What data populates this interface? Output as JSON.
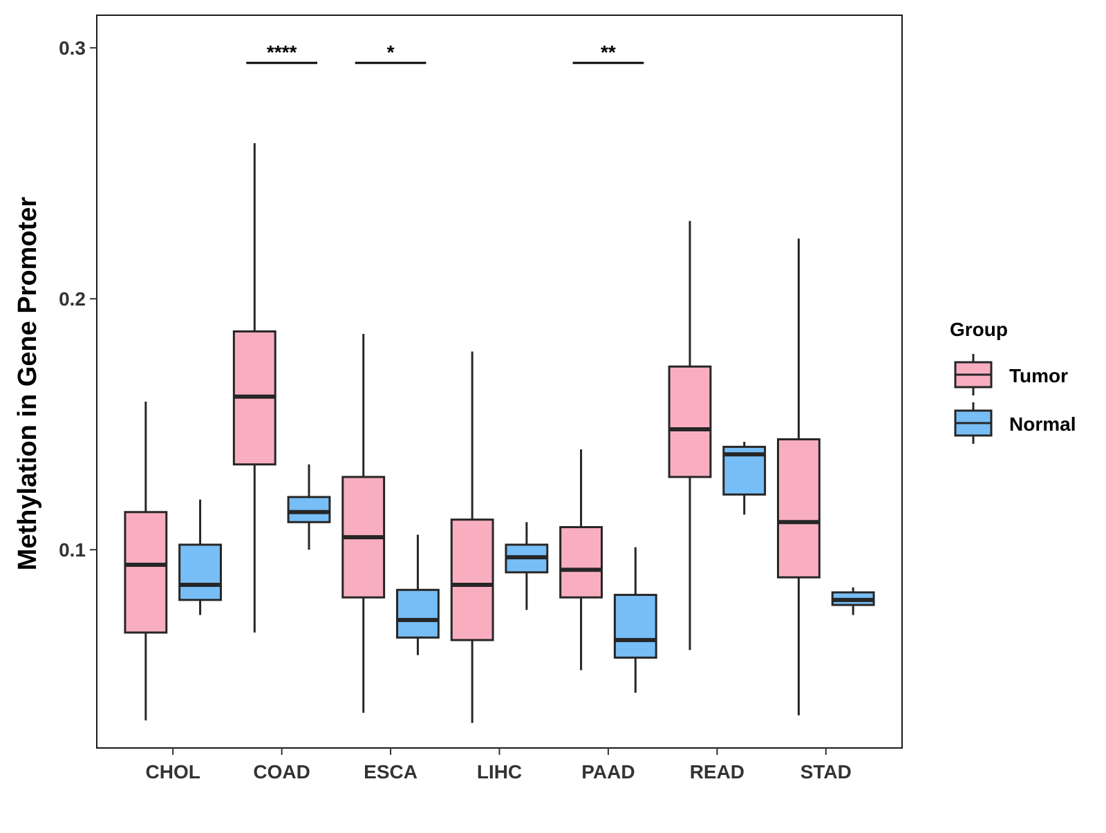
{
  "chart_data": {
    "type": "boxplot",
    "title": "",
    "xlabel": "",
    "ylabel": "Methylation in Gene Promoter",
    "ylim": [
      0.021,
      0.313
    ],
    "yticks": [
      0.1,
      0.2,
      0.3
    ],
    "ytick_labels": [
      "0.1",
      "0.2",
      "0.3"
    ],
    "categories": [
      "CHOL",
      "COAD",
      "ESCA",
      "LIHC",
      "PAAD",
      "READ",
      "STAD"
    ],
    "legend": {
      "title": "Group",
      "position": "right",
      "entries": [
        "Tumor",
        "Normal"
      ]
    },
    "colors": {
      "Tumor": "#F9AEC0",
      "Normal": "#78BEF6",
      "stroke": "#262626"
    },
    "series": [
      {
        "name": "Tumor",
        "boxes": [
          {
            "min": 0.032,
            "q1": 0.067,
            "median": 0.094,
            "q3": 0.115,
            "max": 0.159
          },
          {
            "min": 0.067,
            "q1": 0.134,
            "median": 0.161,
            "q3": 0.187,
            "max": 0.262
          },
          {
            "min": 0.035,
            "q1": 0.081,
            "median": 0.105,
            "q3": 0.129,
            "max": 0.186
          },
          {
            "min": 0.031,
            "q1": 0.064,
            "median": 0.086,
            "q3": 0.112,
            "max": 0.179
          },
          {
            "min": 0.052,
            "q1": 0.081,
            "median": 0.092,
            "q3": 0.109,
            "max": 0.14
          },
          {
            "min": 0.06,
            "q1": 0.129,
            "median": 0.148,
            "q3": 0.173,
            "max": 0.231
          },
          {
            "min": 0.034,
            "q1": 0.089,
            "median": 0.111,
            "q3": 0.144,
            "max": 0.224
          }
        ]
      },
      {
        "name": "Normal",
        "boxes": [
          {
            "min": 0.074,
            "q1": 0.08,
            "median": 0.086,
            "q3": 0.102,
            "max": 0.12
          },
          {
            "min": 0.1,
            "q1": 0.111,
            "median": 0.115,
            "q3": 0.121,
            "max": 0.134
          },
          {
            "min": 0.058,
            "q1": 0.065,
            "median": 0.072,
            "q3": 0.084,
            "max": 0.106
          },
          {
            "min": 0.076,
            "q1": 0.091,
            "median": 0.097,
            "q3": 0.102,
            "max": 0.111
          },
          {
            "min": 0.043,
            "q1": 0.057,
            "median": 0.064,
            "q3": 0.082,
            "max": 0.101
          },
          {
            "min": 0.114,
            "q1": 0.122,
            "median": 0.138,
            "q3": 0.141,
            "max": 0.143
          },
          {
            "min": 0.074,
            "q1": 0.078,
            "median": 0.08,
            "q3": 0.083,
            "max": 0.085
          }
        ]
      }
    ],
    "annotations": [
      {
        "category": "COAD",
        "label": "****",
        "y": 0.294
      },
      {
        "category": "ESCA",
        "label": "*",
        "y": 0.294
      },
      {
        "category": "PAAD",
        "label": "**",
        "y": 0.294
      }
    ]
  }
}
